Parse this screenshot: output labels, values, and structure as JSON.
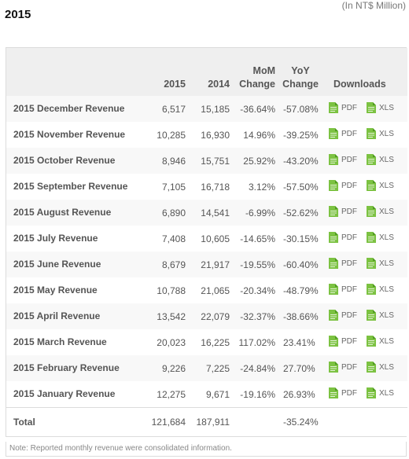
{
  "header": {
    "year_title": "2015",
    "unit_note": "(In NT$ Million)"
  },
  "table": {
    "columns": {
      "name": "",
      "y2015": "2015",
      "y2014": "2014",
      "mom": "MoM Change",
      "yoy": "YoY Change",
      "downloads": "Downloads"
    },
    "rows": [
      {
        "name": "2015 December Revenue",
        "v2015": "6,517",
        "v2014": "15,185",
        "mom": "-36.64%",
        "yoy": "-57.08%"
      },
      {
        "name": "2015 November Revenue",
        "v2015": "10,285",
        "v2014": "16,930",
        "mom": "14.96%",
        "yoy": "-39.25%"
      },
      {
        "name": "2015 October Revenue",
        "v2015": "8,946",
        "v2014": "15,751",
        "mom": "25.92%",
        "yoy": "-43.20%"
      },
      {
        "name": "2015 September Revenue",
        "v2015": "7,105",
        "v2014": "16,718",
        "mom": "3.12%",
        "yoy": "-57.50%"
      },
      {
        "name": "2015 August Revenue",
        "v2015": "6,890",
        "v2014": "14,541",
        "mom": "-6.99%",
        "yoy": "-52.62%"
      },
      {
        "name": "2015 July Revenue",
        "v2015": "7,408",
        "v2014": "10,605",
        "mom": "-14.65%",
        "yoy": "-30.15%"
      },
      {
        "name": "2015 June Revenue",
        "v2015": "8,679",
        "v2014": "21,917",
        "mom": "-19.55%",
        "yoy": "-60.40%"
      },
      {
        "name": "2015 May Revenue",
        "v2015": "10,788",
        "v2014": "21,065",
        "mom": "-20.34%",
        "yoy": "-48.79%"
      },
      {
        "name": "2015 April Revenue",
        "v2015": "13,542",
        "v2014": "22,079",
        "mom": "-32.37%",
        "yoy": "-38.66%"
      },
      {
        "name": "2015 March Revenue",
        "v2015": "20,023",
        "v2014": "16,225",
        "mom": "117.02%",
        "yoy": "23.41%"
      },
      {
        "name": "2015 February Revenue",
        "v2015": "9,226",
        "v2014": "7,225",
        "mom": "-24.84%",
        "yoy": "27.70%"
      },
      {
        "name": "2015 January Revenue",
        "v2015": "12,275",
        "v2014": "9,671",
        "mom": "-19.16%",
        "yoy": "26.93%"
      }
    ],
    "total": {
      "name": "Total",
      "v2015": "121,684",
      "v2014": "187,911",
      "mom": "",
      "yoy": "-35.24%"
    },
    "download_labels": {
      "pdf": "PDF",
      "xls": "XLS"
    }
  },
  "note": "Note: Reported monthly revenue were consolidated information.",
  "colors": {
    "file_icon": "#7cc242",
    "file_icon_fold": "#4f9a1f"
  },
  "icons": {
    "pdf": "file-icon",
    "xls": "file-icon"
  }
}
